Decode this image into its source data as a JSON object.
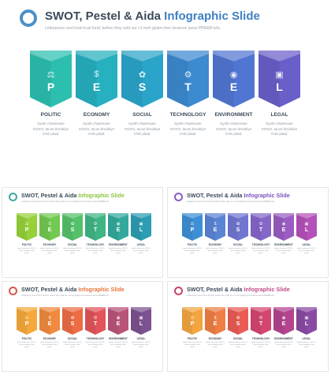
{
  "slides": [
    {
      "title_prefix": "SWOT, Pestel & Aida ",
      "title_highlight": "Infographic Slide",
      "subtitle": "Letterpress next level trust fund, before they sold out +1 meh gluten-free locavore tacos PBR&B tofu.",
      "colors": {
        "ring": "#4a90c8",
        "highlight": "#3f80c4",
        "cards": [
          "#2cbfb0",
          "#26b0c0",
          "#2aa4c9",
          "#3c8ad0",
          "#5175d2",
          "#6a5fc9"
        ]
      },
      "cards": [
        {
          "letter": "P",
          "icon": "⚖",
          "icon_name": "scales-icon",
          "label": "POLITIC",
          "desc": "Synth chartreuse XOXO, tacos brooklyn VHS plaid."
        },
        {
          "letter": "E",
          "icon": "$",
          "icon_name": "money-icon",
          "label": "ECONOMY",
          "desc": "Synth chartreuse XOXO, tacos brooklyn VHS plaid."
        },
        {
          "letter": "S",
          "icon": "✿",
          "icon_name": "people-icon",
          "label": "SOCIAL",
          "desc": "Synth chartreuse XOXO, tacos brooklyn VHS plaid."
        },
        {
          "letter": "T",
          "icon": "⚙",
          "icon_name": "gear-icon",
          "label": "TECHNOLOGY",
          "desc": "Synth chartreuse XOXO, tacos brooklyn VHS plaid."
        },
        {
          "letter": "E",
          "icon": "◉",
          "icon_name": "globe-icon",
          "label": "ENVIRONMENT",
          "desc": "Synth chartreuse XOXO, tacos brooklyn VHS plaid."
        },
        {
          "letter": "L",
          "icon": "▣",
          "icon_name": "briefcase-icon",
          "label": "LEGAL",
          "desc": "Synth chartreuse XOXO, tacos brooklyn VHS plaid."
        }
      ]
    },
    {
      "title_prefix": "SWOT, Pestel & Aida ",
      "title_highlight": "Infographic Slide",
      "subtitle": "Letterpress next level trust fund, before they sold out +1 meh gluten-free locavore tacos PBR&B tofu.",
      "colors": {
        "ring": "#3fa9a0",
        "highlight": "#8cc43c",
        "cards": [
          "#96d13a",
          "#72c950",
          "#55c16a",
          "#3fb585",
          "#33a99d",
          "#2c9db2"
        ]
      },
      "cards": [
        {
          "letter": "P",
          "icon": "⚖",
          "icon_name": "scales-icon",
          "label": "POLITIC",
          "desc": "Synth chartreuse XOXO, tacos brooklyn VHS plaid."
        },
        {
          "letter": "E",
          "icon": "$",
          "icon_name": "money-icon",
          "label": "ECONOMY",
          "desc": "Synth chartreuse XOXO, tacos brooklyn VHS plaid."
        },
        {
          "letter": "S",
          "icon": "✿",
          "icon_name": "people-icon",
          "label": "SOCIAL",
          "desc": "Synth chartreuse XOXO, tacos brooklyn VHS plaid."
        },
        {
          "letter": "T",
          "icon": "⚙",
          "icon_name": "gear-icon",
          "label": "TECHNOLOGY",
          "desc": "Synth chartreuse XOXO, tacos brooklyn VHS plaid."
        },
        {
          "letter": "E",
          "icon": "◉",
          "icon_name": "globe-icon",
          "label": "ENVIRONMENT",
          "desc": "Synth chartreuse XOXO, tacos brooklyn VHS plaid."
        },
        {
          "letter": "L",
          "icon": "▣",
          "icon_name": "briefcase-icon",
          "label": "LEGAL",
          "desc": "Synth chartreuse XOXO, tacos brooklyn VHS plaid."
        }
      ]
    },
    {
      "title_prefix": "SWOT, Pestel & Aida ",
      "title_highlight": "Infographic Slide",
      "subtitle": "Letterpress next level trust fund, before they sold out +1 meh gluten-free locavore tacos PBR&B tofu.",
      "colors": {
        "ring": "#8a5cc4",
        "highlight": "#7b52c0",
        "cards": [
          "#3d8fd6",
          "#5a84d4",
          "#7176d0",
          "#8567c9",
          "#9a5cc2",
          "#b451b8"
        ]
      },
      "cards": [
        {
          "letter": "P",
          "icon": "⚖",
          "icon_name": "scales-icon",
          "label": "POLITIC",
          "desc": "Synth chartreuse XOXO, tacos brooklyn VHS plaid."
        },
        {
          "letter": "E",
          "icon": "$",
          "icon_name": "money-icon",
          "label": "ECONOMY",
          "desc": "Synth chartreuse XOXO, tacos brooklyn VHS plaid."
        },
        {
          "letter": "S",
          "icon": "✿",
          "icon_name": "people-icon",
          "label": "SOCIAL",
          "desc": "Synth chartreuse XOXO, tacos brooklyn VHS plaid."
        },
        {
          "letter": "T",
          "icon": "⚙",
          "icon_name": "gear-icon",
          "label": "TECHNOLOGY",
          "desc": "Synth chartreuse XOXO, tacos brooklyn VHS plaid."
        },
        {
          "letter": "E",
          "icon": "◉",
          "icon_name": "globe-icon",
          "label": "ENVIRONMENT",
          "desc": "Synth chartreuse XOXO, tacos brooklyn VHS plaid."
        },
        {
          "letter": "L",
          "icon": "▣",
          "icon_name": "briefcase-icon",
          "label": "LEGAL",
          "desc": "Synth chartreuse XOXO, tacos brooklyn VHS plaid."
        }
      ]
    },
    {
      "title_prefix": "SWOT, Pestel & Aida ",
      "title_highlight": "Infographic Slide",
      "subtitle": "Letterpress next level trust fund, before they sold out +1 meh gluten-free locavore tacos PBR&B tofu.",
      "colors": {
        "ring": "#d9584f",
        "highlight": "#e8743b",
        "cards": [
          "#f4a93a",
          "#f18a3e",
          "#ec6c44",
          "#e2545a",
          "#b95479",
          "#7c5290"
        ]
      },
      "cards": [
        {
          "letter": "P",
          "icon": "⚖",
          "icon_name": "scales-icon",
          "label": "POLITIC",
          "desc": "Synth chartreuse XOXO, tacos brooklyn VHS plaid."
        },
        {
          "letter": "E",
          "icon": "$",
          "icon_name": "money-icon",
          "label": "ECONOMY",
          "desc": "Synth chartreuse XOXO, tacos brooklyn VHS plaid."
        },
        {
          "letter": "S",
          "icon": "✿",
          "icon_name": "people-icon",
          "label": "SOCIAL",
          "desc": "Synth chartreuse XOXO, tacos brooklyn VHS plaid."
        },
        {
          "letter": "T",
          "icon": "⚙",
          "icon_name": "gear-icon",
          "label": "TECHNOLOGY",
          "desc": "Synth chartreuse XOXO, tacos brooklyn VHS plaid."
        },
        {
          "letter": "E",
          "icon": "◉",
          "icon_name": "globe-icon",
          "label": "ENVIRONMENT",
          "desc": "Synth chartreuse XOXO, tacos brooklyn VHS plaid."
        },
        {
          "letter": "L",
          "icon": "▣",
          "icon_name": "briefcase-icon",
          "label": "LEGAL",
          "desc": "Synth chartreuse XOXO, tacos brooklyn VHS plaid."
        }
      ]
    },
    {
      "title_prefix": "SWOT, Pestel & Aida ",
      "title_highlight": "Infographic Slide",
      "subtitle": "Letterpress next level trust fund, before they sold out +1 meh gluten-free locavore tacos PBR&B tofu.",
      "colors": {
        "ring": "#c2476f",
        "highlight": "#c24a8a",
        "cards": [
          "#f3a540",
          "#ee7f45",
          "#e85c54",
          "#d5466f",
          "#b4448f",
          "#8a4aa4"
        ]
      },
      "cards": [
        {
          "letter": "P",
          "icon": "⚖",
          "icon_name": "scales-icon",
          "label": "POLITIC",
          "desc": "Synth chartreuse XOXO, tacos brooklyn VHS plaid."
        },
        {
          "letter": "E",
          "icon": "$",
          "icon_name": "money-icon",
          "label": "ECONOMY",
          "desc": "Synth chartreuse XOXO, tacos brooklyn VHS plaid."
        },
        {
          "letter": "S",
          "icon": "✿",
          "icon_name": "people-icon",
          "label": "SOCIAL",
          "desc": "Synth chartreuse XOXO, tacos brooklyn VHS plaid."
        },
        {
          "letter": "T",
          "icon": "⚙",
          "icon_name": "gear-icon",
          "label": "TECHNOLOGY",
          "desc": "Synth chartreuse XOXO, tacos brooklyn VHS plaid."
        },
        {
          "letter": "E",
          "icon": "◉",
          "icon_name": "globe-icon",
          "label": "ENVIRONMENT",
          "desc": "Synth chartreuse XOXO, tacos brooklyn VHS plaid."
        },
        {
          "letter": "L",
          "icon": "▣",
          "icon_name": "briefcase-icon",
          "label": "LEGAL",
          "desc": "Synth chartreuse XOXO, tacos brooklyn VHS plaid."
        }
      ]
    }
  ]
}
